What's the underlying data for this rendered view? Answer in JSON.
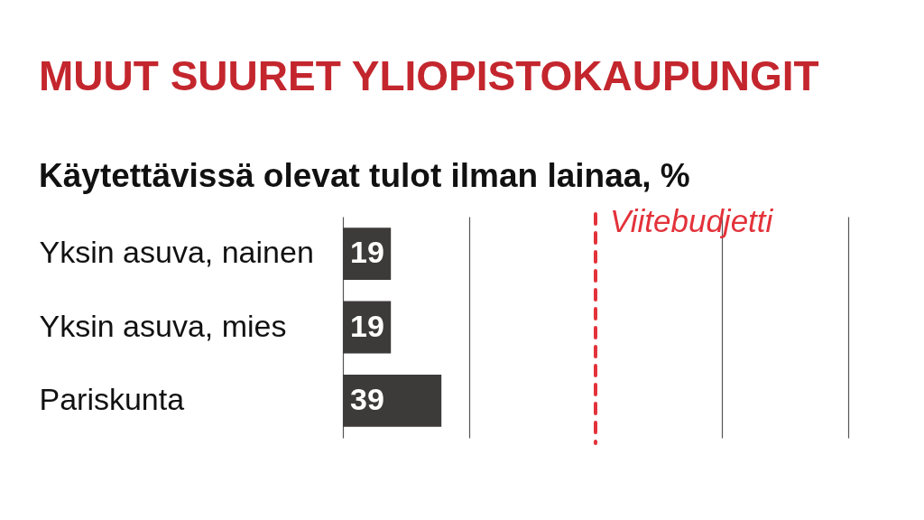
{
  "chart_data": {
    "type": "bar",
    "orientation": "horizontal",
    "title": "MUUT SUURET YLIOPISTOKAUPUNGIT",
    "subtitle": "Käytettävissä olevat tulot ilman lainaa, %",
    "categories": [
      "Yksin asuva, nainen",
      "Yksin asuva, mies",
      "Pariskunta"
    ],
    "values": [
      19,
      19,
      39
    ],
    "color": "#3d3b3a",
    "data_labels": true,
    "xlim": [
      0,
      200
    ],
    "xticks": [
      {
        "value": 0,
        "label": null
      },
      {
        "value": 50,
        "label": null
      },
      {
        "value": 150,
        "label": null
      },
      {
        "value": 200,
        "label": null
      }
    ],
    "grid": "x",
    "tick_labels": "y",
    "ref_lines": [
      {
        "axis": "x",
        "value": 100,
        "label": "Viitebudjetti",
        "color": "#e3323a",
        "line_style": "dashed"
      }
    ]
  }
}
